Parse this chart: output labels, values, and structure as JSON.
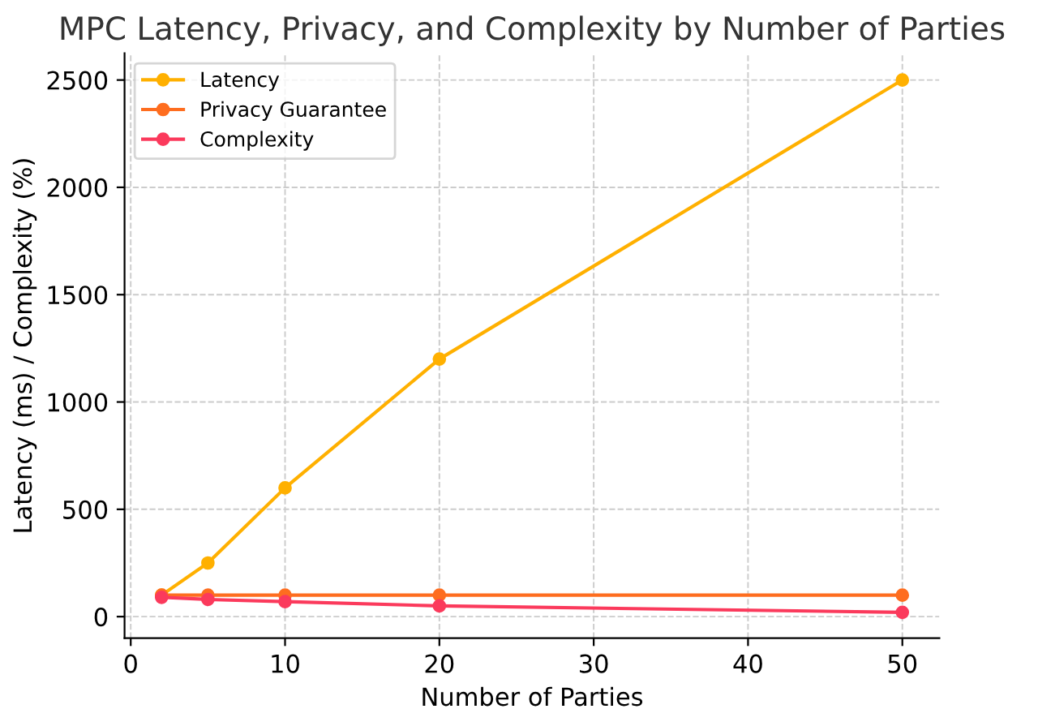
{
  "chart_data": {
    "type": "line",
    "title": "MPC Latency, Privacy, and Complexity by Number of Parties",
    "xlabel": "Number of Parties",
    "ylabel": "Latency (ms) / Complexity (%)",
    "x": [
      2,
      5,
      10,
      20,
      50
    ],
    "series": [
      {
        "name": "Latency",
        "color": "#ffb000",
        "values": [
          100,
          250,
          600,
          1200,
          2500
        ]
      },
      {
        "name": "Privacy Guarantee",
        "color": "#fe6d1f",
        "values": [
          100,
          100,
          100,
          100,
          100
        ]
      },
      {
        "name": "Complexity",
        "color": "#fb3a5c",
        "values": [
          90,
          80,
          70,
          50,
          20
        ]
      }
    ],
    "xlim": [
      -0.4,
      52.4
    ],
    "ylim": [
      -100,
      2625
    ],
    "xticks": [
      0,
      10,
      20,
      30,
      40,
      50
    ],
    "yticks": [
      0,
      500,
      1000,
      1500,
      2000,
      2500
    ],
    "grid": true,
    "legend": "top left",
    "marker": "circle",
    "line_style": "solid"
  }
}
